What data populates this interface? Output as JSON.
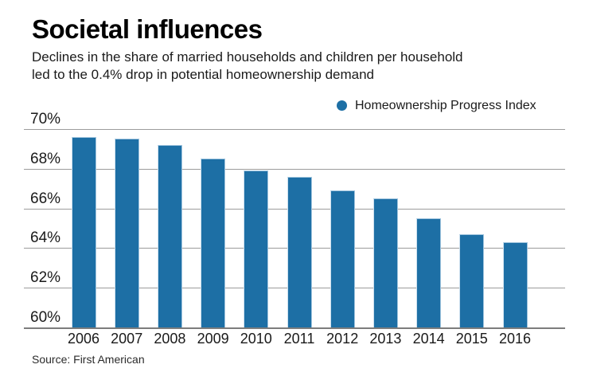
{
  "header": {
    "title": "Societal influences",
    "subtitle_line1": "Declines in the share of married households and children per household",
    "subtitle_line2": "led to the 0.4% drop in potential homeownership demand"
  },
  "legend": {
    "label": "Homeownership Progress Index",
    "marker_color": "#1d6fa5"
  },
  "source": {
    "note": "Source: First American"
  },
  "chart_data": {
    "type": "bar",
    "title": "Societal influences",
    "series_name": "Homeownership Progress Index",
    "categories": [
      "2006",
      "2007",
      "2008",
      "2009",
      "2010",
      "2011",
      "2012",
      "2013",
      "2014",
      "2015",
      "2016"
    ],
    "values": [
      69.6,
      69.5,
      69.2,
      68.5,
      67.9,
      67.6,
      66.9,
      66.5,
      65.5,
      64.7,
      64.3
    ],
    "unit": "%",
    "xlabel": "",
    "ylabel": "",
    "ylim": [
      60,
      70
    ],
    "ytick_values": [
      70,
      68,
      66,
      64,
      62,
      60
    ],
    "ytick_labels": [
      "70%",
      "68%",
      "66%",
      "64%",
      "62%",
      "60%"
    ],
    "grid": true,
    "legend_position": "top-right",
    "bar_color": "#1d6fa5",
    "gridline_color": "#9c9c9c"
  }
}
